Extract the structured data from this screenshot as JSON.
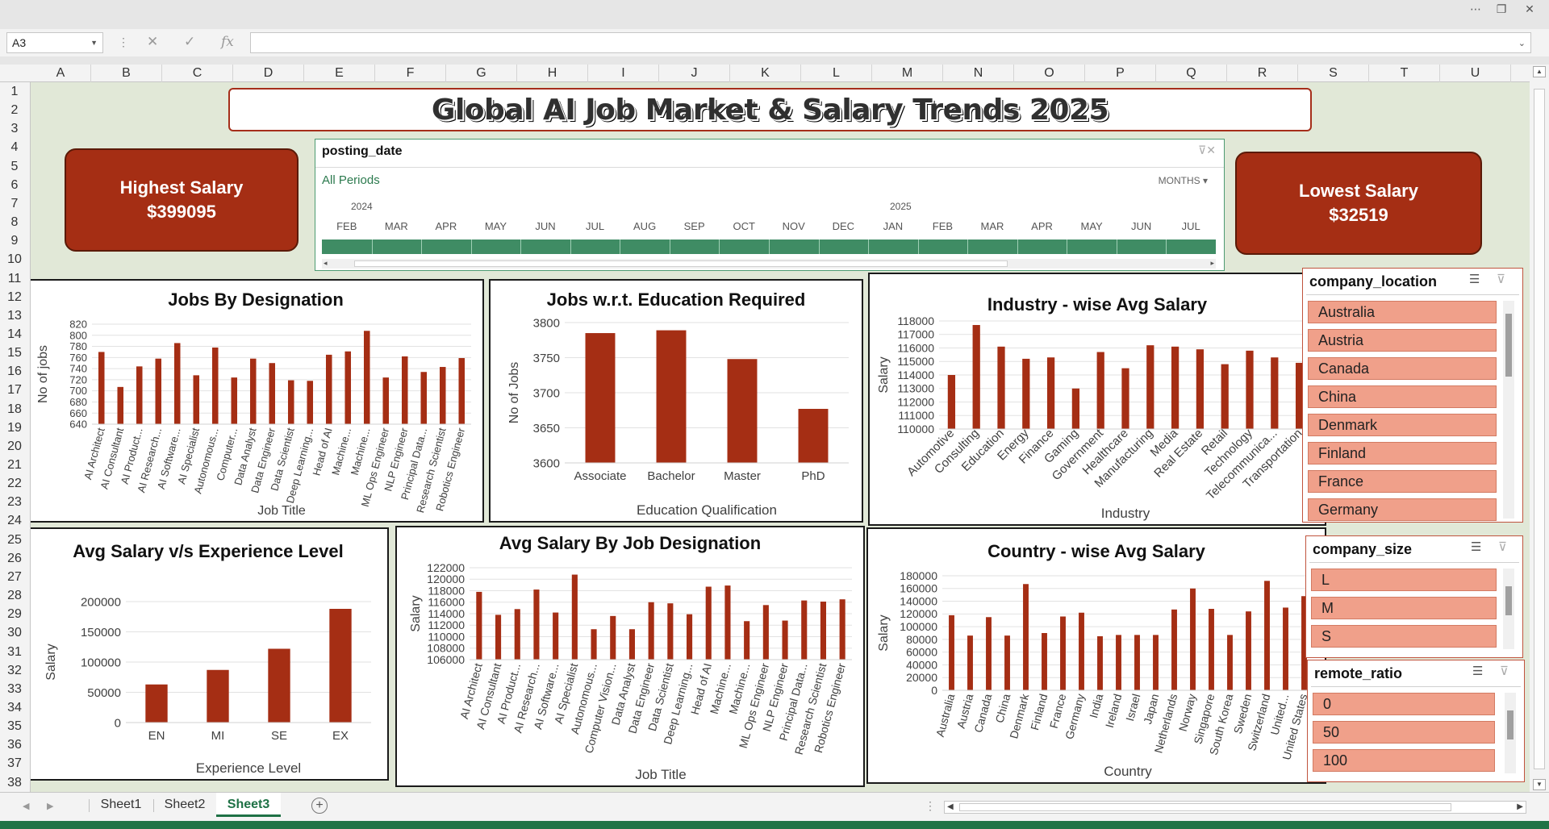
{
  "namebox": "A3",
  "columns": [
    "A",
    "B",
    "C",
    "D",
    "E",
    "F",
    "G",
    "H",
    "I",
    "J",
    "K",
    "L",
    "M",
    "N",
    "O",
    "P",
    "Q",
    "R",
    "S",
    "T",
    "U"
  ],
  "rows": [
    "1",
    "2",
    "3",
    "4",
    "5",
    "6",
    "7",
    "8",
    "9",
    "10",
    "11",
    "12",
    "13",
    "14",
    "15",
    "16",
    "17",
    "18",
    "19",
    "20",
    "21",
    "22",
    "23",
    "24",
    "25",
    "26",
    "27",
    "28",
    "29",
    "30",
    "31",
    "32",
    "33",
    "34",
    "35",
    "36",
    "37",
    "38"
  ],
  "dashboard": {
    "title": "Global AI Job Market & Salary Trends 2025",
    "highest": {
      "label": "Highest Salary",
      "value": "$399095"
    },
    "lowest": {
      "label": "Lowest Salary",
      "value": "$32519"
    }
  },
  "timeline": {
    "field": "posting_date",
    "period": "All Periods",
    "level": "MONTHS",
    "years": [
      "2024",
      "2025"
    ],
    "months": [
      "FEB",
      "MAR",
      "APR",
      "MAY",
      "JUN",
      "JUL",
      "AUG",
      "SEP",
      "OCT",
      "NOV",
      "DEC",
      "JAN",
      "FEB",
      "MAR",
      "APR",
      "MAY",
      "JUN",
      "JUL"
    ]
  },
  "slicers": {
    "company_location": {
      "title": "company_location",
      "items": [
        "Australia",
        "Austria",
        "Canada",
        "China",
        "Denmark",
        "Finland",
        "France",
        "Germany"
      ]
    },
    "company_size": {
      "title": "company_size",
      "items": [
        "L",
        "M",
        "S"
      ]
    },
    "remote_ratio": {
      "title": "remote_ratio",
      "items": [
        "0",
        "50",
        "100"
      ]
    }
  },
  "colors": {
    "bar": "#a52e14",
    "slicer_item": "#f0a08a",
    "sheet_bg": "#e1e8d7",
    "timeline_bar": "#3f8c64",
    "active_tab": "#1e7145"
  },
  "sheets": {
    "tabs": [
      "Sheet1",
      "Sheet2",
      "Sheet3"
    ],
    "active": "Sheet3"
  },
  "chart_data": [
    {
      "id": "jobs-designation",
      "type": "bar",
      "title": "Jobs By Designation",
      "xlabel": "Job Title",
      "ylabel": "No of jobs",
      "categories": [
        "AI Architect",
        "AI Consultant",
        "AI Product...",
        "AI Research...",
        "AI Software...",
        "AI Specialist",
        "Autonomous...",
        "Computer...",
        "Data Analyst",
        "Data Engineer",
        "Data Scientist",
        "Deep Learning...",
        "Head of AI",
        "Machine...",
        "Machine...",
        "ML Ops Engineer",
        "NLP Engineer",
        "Principal Data...",
        "Research Scientist",
        "Robotics Engineer"
      ],
      "values": [
        770,
        707,
        744,
        758,
        786,
        728,
        778,
        724,
        758,
        750,
        719,
        718,
        765,
        771,
        808,
        724,
        762,
        734,
        743,
        759
      ],
      "ylim": [
        640,
        820
      ],
      "ticks": [
        640,
        660,
        680,
        700,
        720,
        740,
        760,
        780,
        800,
        820
      ]
    },
    {
      "id": "jobs-education",
      "type": "bar",
      "title": "Jobs w.r.t. Education Required",
      "xlabel": "Education Qualification",
      "ylabel": "No of Jobs",
      "categories": [
        "Associate",
        "Bachelor",
        "Master",
        "PhD"
      ],
      "values": [
        3785,
        3789,
        3748,
        3677
      ],
      "ylim": [
        3600,
        3800
      ],
      "ticks": [
        3600,
        3650,
        3700,
        3750,
        3800
      ]
    },
    {
      "id": "industry-salary",
      "type": "bar",
      "title": "Industry - wise Avg Salary",
      "xlabel": "Industry",
      "ylabel": "Salary",
      "categories": [
        "Automotive",
        "Consulting",
        "Education",
        "Energy",
        "Finance",
        "Gaming",
        "Government",
        "Healthcare",
        "Manufacturing",
        "Media",
        "Real Estate",
        "Retail",
        "Technology",
        "Telecommunica...",
        "Transportation"
      ],
      "values": [
        114000,
        117700,
        116100,
        115200,
        115300,
        113000,
        115700,
        114500,
        116200,
        116100,
        115900,
        114800,
        115800,
        115300,
        114900
      ],
      "ylim": [
        110000,
        118000
      ],
      "ticks": [
        110000,
        111000,
        112000,
        113000,
        114000,
        115000,
        116000,
        117000,
        118000
      ]
    },
    {
      "id": "experience-salary",
      "type": "bar",
      "title": "Avg Salary v/s Experience Level",
      "xlabel": "Experience Level",
      "ylabel": "Salary",
      "categories": [
        "EN",
        "MI",
        "SE",
        "EX"
      ],
      "values": [
        63000,
        87000,
        122000,
        188000
      ],
      "ylim": [
        0,
        200000
      ],
      "ticks": [
        0,
        50000,
        100000,
        150000,
        200000
      ]
    },
    {
      "id": "designation-salary",
      "type": "bar",
      "title": "Avg Salary By Job Designation",
      "xlabel": "Job Title",
      "ylabel": "Salary",
      "categories": [
        "AI Architect",
        "AI Consultant",
        "AI Product...",
        "AI Research...",
        "AI Software...",
        "AI Specialist",
        "Autonomous...",
        "Computer Vision...",
        "Data Analyst",
        "Data Engineer",
        "Data Scientist",
        "Deep Learning...",
        "Head of AI",
        "Machine...",
        "Machine...",
        "ML Ops Engineer",
        "NLP Engineer",
        "Principal Data...",
        "Research Scientist",
        "Robotics Engineer"
      ],
      "values": [
        117800,
        113800,
        114800,
        118200,
        114200,
        120800,
        111300,
        113600,
        111300,
        116000,
        115800,
        113900,
        118700,
        118900,
        112700,
        115500,
        112800,
        116300,
        116100,
        116500
      ],
      "ylim": [
        106000,
        122000
      ],
      "ticks": [
        106000,
        108000,
        110000,
        112000,
        114000,
        116000,
        118000,
        120000,
        122000
      ]
    },
    {
      "id": "country-salary",
      "type": "bar",
      "title": "Country - wise Avg Salary",
      "xlabel": "Country",
      "ylabel": "Salary",
      "categories": [
        "Australia",
        "Austria",
        "Canada",
        "China",
        "Denmark",
        "Finland",
        "France",
        "Germany",
        "India",
        "Ireland",
        "Israel",
        "Japan",
        "Netherlands",
        "Norway",
        "Singapore",
        "South Korea",
        "Sweden",
        "Switzerland",
        "United...",
        "United States"
      ],
      "values": [
        118000,
        86000,
        115000,
        86000,
        167000,
        90000,
        116000,
        122000,
        85000,
        87000,
        87000,
        87000,
        127000,
        160000,
        128000,
        87000,
        124000,
        172000,
        130000,
        148000
      ],
      "ylim": [
        0,
        180000
      ],
      "ticks": [
        0,
        20000,
        40000,
        60000,
        80000,
        100000,
        120000,
        140000,
        160000,
        180000
      ]
    }
  ]
}
